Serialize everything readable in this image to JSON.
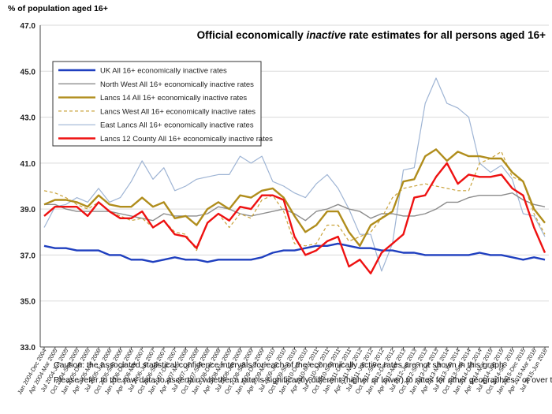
{
  "chart_data": {
    "type": "line",
    "title_prefix": "Official economically ",
    "title_emph": "inactive",
    "title_suffix": " rate estimates for all persons aged 16+",
    "ylabel": "% of population aged 16+",
    "ylim": [
      33.0,
      47.0
    ],
    "yticks": [
      "33.0",
      "35.0",
      "37.0",
      "39.0",
      "41.0",
      "43.0",
      "45.0",
      "47.0"
    ],
    "grid": true,
    "legend_position": "top-left",
    "categories": [
      "Jan 2004-Dec 2004",
      "Apr 2004-Mar 2005",
      "Jul 2004-Jun 2005",
      "Oct 2004-Sep 2005",
      "Jan 2005-Dec 2005",
      "Apr 2005-Mar 2006",
      "Jul 2005-Jun 2006",
      "Oct 2005-Sep 2006",
      "Jan 2006-Dec 2006",
      "Apr 2006-Mar 2007",
      "Jul 2006-Jun 2007",
      "Oct 2006-Sep 2007",
      "Jan 2007-Dec 2007",
      "Apr 2007-Mar 2008",
      "Jul 2007-Jun 2008",
      "Oct 2007-Sep 2008",
      "Jan 2008-Dec 2008",
      "Apr 2008-Mar 2009",
      "Jul 2008-Jun 2009",
      "Oct 2008-Sep 2009",
      "Jan 2009-Dec 2009",
      "Apr 2009-Mar 2010",
      "Jul 2009-Jun 2010",
      "Oct 2009-Sep 2010",
      "Jan 2010-Dec 2010",
      "Apr 2010-Mar 2011",
      "Jul 2010-Jun 2011",
      "Oct 2010-Sep 2011",
      "Jan 2011-Dec 2011",
      "Apr 2011-Mar 2012",
      "Jul 2011-Jun 2012",
      "Oct 2011-Sep 2012",
      "Jan 2012-Dec 2012",
      "Apr 2012-Mar 2013",
      "Jul 2012-Jun 2013",
      "Oct 2012-Sep 2013",
      "Jan 2013-Dec 2013",
      "Apr 2013-Mar 2014",
      "Jul 2013-Jun 2014",
      "Oct 2013-Sep 2014",
      "Jan 2014-Dec 2014",
      "Apr 2014-Mar 2015",
      "Jul 2014-Jun 2015",
      "Oct 2014-Sep 2015",
      "Jan 2015-Dec 2015",
      "Apr 2015-Mar 2016",
      "Jul 2015-Jun 2016"
    ],
    "series": [
      {
        "name": "UK All 16+ economically inactive rates",
        "color": "#1f3fbf",
        "width": 2.4,
        "dash": "",
        "values": [
          37.4,
          37.3,
          37.3,
          37.2,
          37.2,
          37.2,
          37.0,
          37.0,
          36.8,
          36.8,
          36.7,
          36.8,
          36.9,
          36.8,
          36.8,
          36.7,
          36.8,
          36.8,
          36.8,
          36.8,
          36.9,
          37.1,
          37.2,
          37.2,
          37.3,
          37.4,
          37.4,
          37.5,
          37.4,
          37.3,
          37.3,
          37.2,
          37.2,
          37.1,
          37.1,
          37.0,
          37.0,
          37.0,
          37.0,
          37.0,
          37.1,
          37.0,
          37.0,
          36.9,
          36.8,
          36.9,
          36.8
        ]
      },
      {
        "name": "North West All 16+ economically inactive rates",
        "color": "#8c8c8c",
        "width": 1.4,
        "dash": "",
        "values": [
          39.2,
          39.2,
          39.0,
          38.9,
          38.9,
          38.9,
          38.9,
          38.8,
          38.7,
          38.6,
          38.5,
          38.8,
          38.7,
          38.7,
          38.7,
          38.8,
          39.1,
          39.0,
          38.8,
          38.7,
          38.8,
          38.9,
          39.0,
          38.8,
          38.5,
          38.9,
          39.0,
          39.2,
          39.0,
          38.9,
          38.6,
          38.8,
          38.8,
          38.7,
          38.7,
          38.8,
          39.0,
          39.3,
          39.3,
          39.5,
          39.6,
          39.6,
          39.6,
          39.7,
          39.4,
          39.2,
          39.1
        ]
      },
      {
        "name": "Lancs 14 All 16+ economically inactive rates",
        "color": "#b08d1c",
        "width": 2.4,
        "dash": "",
        "values": [
          39.2,
          39.4,
          39.4,
          39.3,
          39.1,
          39.6,
          39.2,
          39.1,
          39.1,
          39.5,
          39.1,
          39.3,
          38.6,
          38.7,
          38.3,
          39.0,
          39.3,
          39.0,
          39.6,
          39.5,
          39.8,
          39.9,
          39.5,
          38.7,
          38.0,
          38.3,
          38.9,
          38.9,
          38.0,
          37.4,
          38.3,
          38.6,
          38.9,
          40.2,
          40.3,
          41.3,
          41.6,
          41.1,
          41.5,
          41.3,
          41.3,
          41.2,
          41.2,
          40.6,
          40.2,
          39.0,
          38.4
        ]
      },
      {
        "name": "Lancs West All 16+ economically inactive rates",
        "color": "#c9a23a",
        "width": 1.2,
        "dash": "4,3",
        "values": [
          39.8,
          39.7,
          39.5,
          39.2,
          39.0,
          39.3,
          38.9,
          38.7,
          38.5,
          38.6,
          38.2,
          38.5,
          38.0,
          37.9,
          37.2,
          38.4,
          38.8,
          38.2,
          38.8,
          38.6,
          39.4,
          39.6,
          38.9,
          37.5,
          37.4,
          37.5,
          38.3,
          38.3,
          37.6,
          37.8,
          38.0,
          38.6,
          39.5,
          39.9,
          40.0,
          40.1,
          40.0,
          39.9,
          39.8,
          39.8,
          41.0,
          41.2,
          41.5,
          40.4,
          40.2,
          38.8,
          37.9
        ]
      },
      {
        "name": "East Lancs All 16+ economically inactive rates",
        "color": "#9eb4d4",
        "width": 1.2,
        "dash": "",
        "values": [
          38.2,
          39.1,
          39.2,
          39.5,
          39.3,
          39.9,
          39.3,
          39.5,
          40.2,
          41.1,
          40.3,
          40.8,
          39.8,
          40.0,
          40.3,
          40.4,
          40.5,
          40.5,
          41.3,
          41.0,
          41.3,
          40.2,
          40.0,
          39.7,
          39.5,
          40.1,
          40.5,
          39.9,
          39.0,
          37.9,
          37.9,
          36.3,
          37.5,
          40.7,
          40.8,
          43.6,
          44.7,
          43.6,
          43.4,
          43.0,
          41.0,
          40.6,
          40.9,
          40.3,
          38.8,
          38.7,
          37.8
        ]
      },
      {
        "name": "Lancs 12 County All 16+ economically inactive rates",
        "color": "#ee1111",
        "width": 2.4,
        "dash": "",
        "values": [
          38.7,
          39.1,
          39.1,
          39.1,
          38.7,
          39.3,
          38.9,
          38.6,
          38.6,
          38.9,
          38.2,
          38.5,
          37.9,
          37.8,
          37.3,
          38.4,
          38.8,
          38.5,
          39.1,
          39.0,
          39.6,
          39.6,
          39.4,
          37.8,
          37.0,
          37.2,
          37.6,
          37.8,
          36.5,
          36.8,
          36.2,
          37.1,
          37.5,
          37.9,
          39.5,
          39.6,
          40.4,
          41.0,
          40.1,
          40.5,
          40.4,
          40.4,
          40.5,
          39.9,
          39.6,
          38.2,
          37.1
        ]
      }
    ],
    "annotation_line1": "Caution: the associated statistical confidence intervals for each of the economically active rates are not shown in this graph.",
    "annotation_line2": "Please refer to the raw data to ascertain whether  a rate is significantly different (higher or lower) to rates for other geographies - or over time"
  }
}
